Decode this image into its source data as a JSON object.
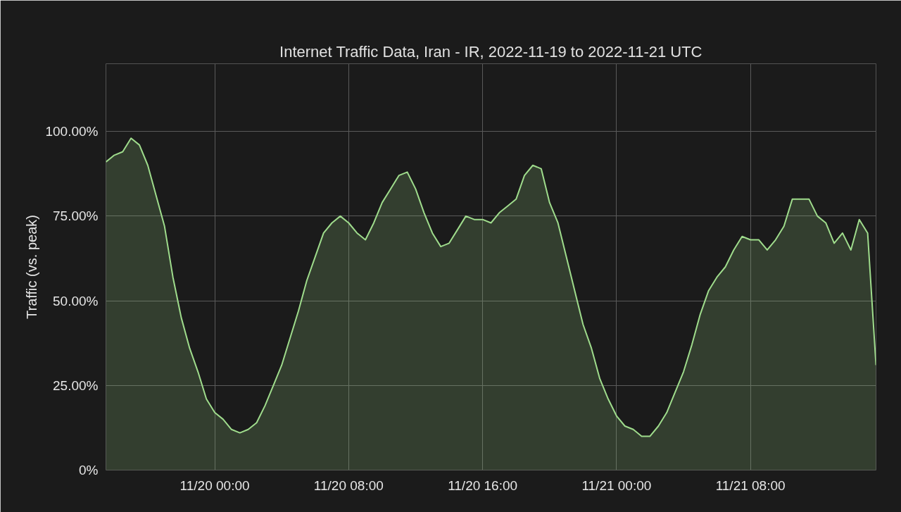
{
  "chart_data": {
    "type": "area",
    "title": "Internet Traffic Data, Iran - IR, 2022-11-19 to 2022-11-21 UTC",
    "ylabel": "Traffic (vs. peak)",
    "x": [
      "2022-11-19T17:30",
      "2022-11-19T18:00",
      "2022-11-19T18:30",
      "2022-11-19T19:00",
      "2022-11-19T19:30",
      "2022-11-19T20:00",
      "2022-11-19T20:30",
      "2022-11-19T21:00",
      "2022-11-19T21:30",
      "2022-11-19T22:00",
      "2022-11-19T22:30",
      "2022-11-19T23:00",
      "2022-11-19T23:30",
      "2022-11-20T00:00",
      "2022-11-20T00:30",
      "2022-11-20T01:00",
      "2022-11-20T01:30",
      "2022-11-20T02:00",
      "2022-11-20T02:30",
      "2022-11-20T03:00",
      "2022-11-20T03:30",
      "2022-11-20T04:00",
      "2022-11-20T04:30",
      "2022-11-20T05:00",
      "2022-11-20T05:30",
      "2022-11-20T06:00",
      "2022-11-20T06:30",
      "2022-11-20T07:00",
      "2022-11-20T07:30",
      "2022-11-20T08:00",
      "2022-11-20T08:30",
      "2022-11-20T09:00",
      "2022-11-20T09:30",
      "2022-11-20T10:00",
      "2022-11-20T10:30",
      "2022-11-20T11:00",
      "2022-11-20T11:30",
      "2022-11-20T12:00",
      "2022-11-20T12:30",
      "2022-11-20T13:00",
      "2022-11-20T13:30",
      "2022-11-20T14:00",
      "2022-11-20T14:30",
      "2022-11-20T15:00",
      "2022-11-20T15:30",
      "2022-11-20T16:00",
      "2022-11-20T16:30",
      "2022-11-20T17:00",
      "2022-11-20T17:30",
      "2022-11-20T18:00",
      "2022-11-20T18:30",
      "2022-11-20T19:00",
      "2022-11-20T19:30",
      "2022-11-20T20:00",
      "2022-11-20T20:30",
      "2022-11-20T21:00",
      "2022-11-20T21:30",
      "2022-11-20T22:00",
      "2022-11-20T22:30",
      "2022-11-20T23:00",
      "2022-11-20T23:30",
      "2022-11-21T00:00",
      "2022-11-21T00:30",
      "2022-11-21T01:00",
      "2022-11-21T01:30",
      "2022-11-21T02:00",
      "2022-11-21T02:30",
      "2022-11-21T03:00",
      "2022-11-21T03:30",
      "2022-11-21T04:00",
      "2022-11-21T04:30",
      "2022-11-21T05:00",
      "2022-11-21T05:30",
      "2022-11-21T06:00",
      "2022-11-21T06:30",
      "2022-11-21T07:00",
      "2022-11-21T07:30",
      "2022-11-21T08:00",
      "2022-11-21T08:30",
      "2022-11-21T09:00",
      "2022-11-21T09:30",
      "2022-11-21T10:00",
      "2022-11-21T10:30",
      "2022-11-21T11:00",
      "2022-11-21T11:30",
      "2022-11-21T12:00",
      "2022-11-21T12:30",
      "2022-11-21T13:00",
      "2022-11-21T13:30",
      "2022-11-21T14:00",
      "2022-11-21T14:30",
      "2022-11-21T15:00",
      "2022-11-21T15:30"
    ],
    "series": [
      {
        "color": "#9fdc8c",
        "values": [
          91,
          93,
          94,
          98,
          96,
          90,
          81,
          72,
          57,
          45,
          36,
          29,
          21,
          17,
          15,
          12,
          11,
          12,
          14,
          19,
          25,
          31,
          39,
          47,
          56,
          63,
          70,
          73,
          75,
          73,
          70,
          68,
          73,
          79,
          83,
          87,
          88,
          83,
          76,
          70,
          66,
          67,
          71,
          75,
          74,
          74,
          73,
          76,
          78,
          80,
          87,
          90,
          89,
          79,
          73,
          63,
          53,
          43,
          36,
          27,
          21,
          16,
          13,
          12,
          10,
          10,
          13,
          17,
          23,
          29,
          37,
          46,
          53,
          57,
          60,
          65,
          69,
          68,
          68,
          65,
          68,
          72,
          80,
          80,
          80,
          75,
          73,
          67,
          70,
          65,
          74,
          70,
          31
        ]
      }
    ],
    "xlim": [
      "2022-11-19T17:30",
      "2022-11-21T15:30"
    ],
    "xticks": [
      {
        "value": "2022-11-20T00:00",
        "label": "11/20 00:00"
      },
      {
        "value": "2022-11-20T08:00",
        "label": "11/20 08:00"
      },
      {
        "value": "2022-11-20T16:00",
        "label": "11/20 16:00"
      },
      {
        "value": "2022-11-21T00:00",
        "label": "11/21 00:00"
      },
      {
        "value": "2022-11-21T08:00",
        "label": "11/21 08:00"
      }
    ],
    "ylim": [
      0,
      120
    ],
    "yticks": [
      {
        "value": 0,
        "label": "0%"
      },
      {
        "value": 25,
        "label": "25.00%"
      },
      {
        "value": 50,
        "label": "50.00%"
      },
      {
        "value": 75,
        "label": "75.00%"
      },
      {
        "value": 100,
        "label": "100.00%"
      }
    ],
    "grid": true
  }
}
